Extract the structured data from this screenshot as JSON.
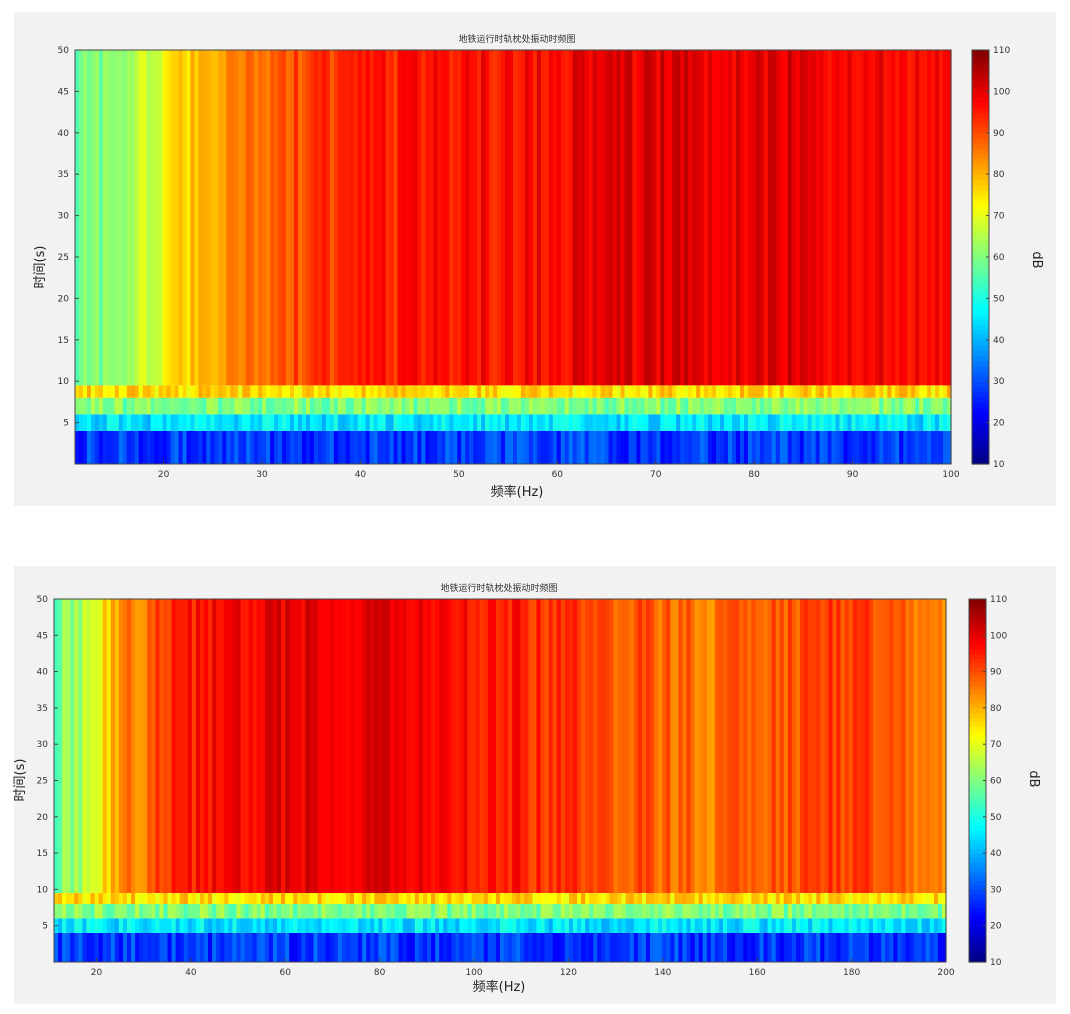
{
  "chart_data": [
    {
      "type": "heatmap",
      "title": "地铁运行时轨枕处振动时频图",
      "xlabel": "频率(Hz)",
      "ylabel": "时间(s)",
      "colorbar_label": "dB",
      "xlim": [
        11,
        100
      ],
      "ylim": [
        0,
        50
      ],
      "clim": [
        10,
        110
      ],
      "x_ticks": [
        20,
        30,
        40,
        50,
        60,
        70,
        80,
        90,
        100
      ],
      "y_ticks": [
        5,
        10,
        15,
        20,
        25,
        30,
        35,
        40,
        45,
        50
      ],
      "colorbar_ticks": [
        10,
        20,
        30,
        40,
        50,
        60,
        70,
        80,
        90,
        100,
        110
      ],
      "colormap": "jet",
      "time_profile": [
        {
          "t_start": 0,
          "t_end": 4,
          "level_db": 28
        },
        {
          "t_start": 4,
          "t_end": 6,
          "level_db": 45
        },
        {
          "t_start": 6,
          "t_end": 8,
          "level_db": 60
        },
        {
          "t_start": 8,
          "t_end": 9.5,
          "level_db": 76
        },
        {
          "t_start": 9.5,
          "t_end": 50,
          "level_db": 96
        }
      ],
      "frequency_profile_db": [
        {
          "f": 11,
          "db": 58
        },
        {
          "f": 17,
          "db": 64
        },
        {
          "f": 20,
          "db": 72
        },
        {
          "f": 24,
          "db": 80
        },
        {
          "f": 30,
          "db": 88
        },
        {
          "f": 40,
          "db": 94
        },
        {
          "f": 60,
          "db": 98
        },
        {
          "f": 75,
          "db": 101
        },
        {
          "f": 90,
          "db": 99
        },
        {
          "f": 100,
          "db": 96
        }
      ]
    },
    {
      "type": "heatmap",
      "title": "地铁运行时轨枕处振动时频图",
      "xlabel": "频率(Hz)",
      "ylabel": "时间(s)",
      "colorbar_label": "dB",
      "xlim": [
        11,
        200
      ],
      "ylim": [
        0,
        50
      ],
      "clim": [
        10,
        110
      ],
      "x_ticks": [
        20,
        40,
        60,
        80,
        100,
        120,
        140,
        160,
        180,
        200
      ],
      "y_ticks": [
        5,
        10,
        15,
        20,
        25,
        30,
        35,
        40,
        45,
        50
      ],
      "colorbar_ticks": [
        10,
        20,
        30,
        40,
        50,
        60,
        70,
        80,
        90,
        100,
        110
      ],
      "colormap": "jet",
      "time_profile": [
        {
          "t_start": 0,
          "t_end": 4,
          "level_db": 28
        },
        {
          "t_start": 4,
          "t_end": 6,
          "level_db": 45
        },
        {
          "t_start": 6,
          "t_end": 8,
          "level_db": 60
        },
        {
          "t_start": 8,
          "t_end": 9.5,
          "level_db": 76
        },
        {
          "t_start": 9.5,
          "t_end": 50,
          "level_db": 96
        }
      ],
      "frequency_profile_db": [
        {
          "f": 11,
          "db": 58
        },
        {
          "f": 18,
          "db": 66
        },
        {
          "f": 24,
          "db": 82
        },
        {
          "f": 40,
          "db": 95
        },
        {
          "f": 60,
          "db": 99
        },
        {
          "f": 80,
          "db": 102
        },
        {
          "f": 100,
          "db": 97
        },
        {
          "f": 130,
          "db": 90
        },
        {
          "f": 150,
          "db": 86
        },
        {
          "f": 180,
          "db": 92
        },
        {
          "f": 200,
          "db": 82
        }
      ]
    }
  ]
}
